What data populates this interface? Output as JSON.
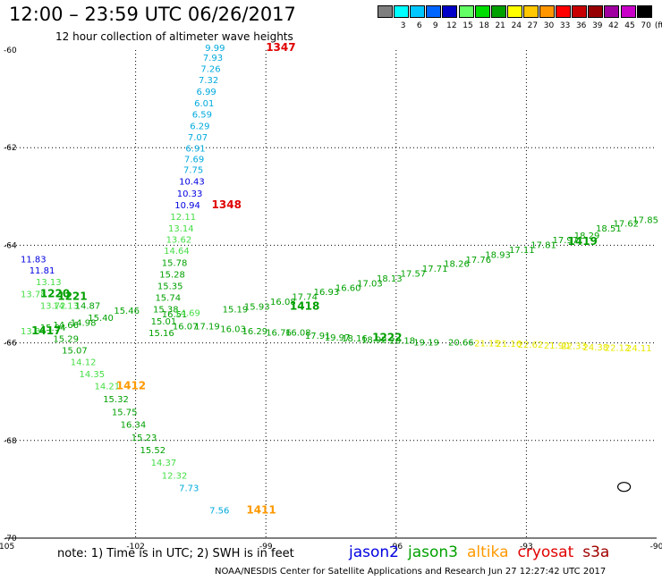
{
  "colors": {
    "jason2": "#0000e0",
    "jason3": "#00a000",
    "altika": "#ff9900",
    "cryosat": "#e00000",
    "s3a": "#a00000",
    "light_green": "#44dd44",
    "cyan": "#00aadd",
    "yellow": "#e8e800"
  },
  "header": {
    "title": "12:00 – 23:59 UTC 06/26/2017",
    "subtitle": "12 hour collection of altimeter wave heights"
  },
  "colorbar": {
    "unit": "(ft)",
    "bins": [
      {
        "label": "",
        "color": "#7f7f7f"
      },
      {
        "label": "3",
        "color": "#00ffff"
      },
      {
        "label": "6",
        "color": "#00c8ff"
      },
      {
        "label": "9",
        "color": "#0064ff"
      },
      {
        "label": "12",
        "color": "#0000c8"
      },
      {
        "label": "15",
        "color": "#64ff64"
      },
      {
        "label": "18",
        "color": "#00dd00"
      },
      {
        "label": "21",
        "color": "#00a000"
      },
      {
        "label": "24",
        "color": "#ffff00"
      },
      {
        "label": "27",
        "color": "#ffc800"
      },
      {
        "label": "30",
        "color": "#ff9600"
      },
      {
        "label": "33",
        "color": "#ff0000"
      },
      {
        "label": "36",
        "color": "#c80000"
      },
      {
        "label": "39",
        "color": "#960000"
      },
      {
        "label": "42",
        "color": "#a000a0"
      },
      {
        "label": "45",
        "color": "#c800c8"
      },
      {
        "label": "70",
        "color": "#000000"
      }
    ]
  },
  "chart_data": {
    "type": "scatter",
    "title": "12:00 – 23:59 UTC 06/26/2017",
    "xlim": [
      -105,
      -90
    ],
    "ylim": [
      -70,
      -60
    ],
    "x_ticks": [
      -105,
      -102,
      -99,
      -96,
      -93,
      -90
    ],
    "y_ticks": [
      -60,
      -62,
      -64,
      -66,
      -68,
      -70
    ],
    "grid": true,
    "points": [
      {
        "lon": -100.4,
        "lat": -60.02,
        "text": "9.99",
        "c": "cyan"
      },
      {
        "lon": -100.45,
        "lat": -60.22,
        "text": "7.93",
        "c": "cyan"
      },
      {
        "lon": -100.5,
        "lat": -60.45,
        "text": "7.26",
        "c": "cyan"
      },
      {
        "lon": -100.55,
        "lat": -60.68,
        "text": "7.32",
        "c": "cyan"
      },
      {
        "lon": -100.6,
        "lat": -60.92,
        "text": "6.99",
        "c": "cyan"
      },
      {
        "lon": -100.65,
        "lat": -61.15,
        "text": "6.01",
        "c": "cyan"
      },
      {
        "lon": -100.7,
        "lat": -61.38,
        "text": "6.59",
        "c": "cyan"
      },
      {
        "lon": -100.75,
        "lat": -61.62,
        "text": "6.29",
        "c": "cyan"
      },
      {
        "lon": -100.8,
        "lat": -61.85,
        "text": "7.07",
        "c": "cyan"
      },
      {
        "lon": -100.85,
        "lat": -62.08,
        "text": "6.91",
        "c": "cyan"
      },
      {
        "lon": -100.88,
        "lat": -62.3,
        "text": "7.69",
        "c": "cyan"
      },
      {
        "lon": -100.9,
        "lat": -62.52,
        "text": "7.75",
        "c": "cyan"
      },
      {
        "lon": -101.0,
        "lat": -62.76,
        "text": "10.43",
        "c": "jason2"
      },
      {
        "lon": -101.05,
        "lat": -63.0,
        "text": "10.33",
        "c": "jason2"
      },
      {
        "lon": -101.1,
        "lat": -63.24,
        "text": "10.94",
        "c": "jason2"
      },
      {
        "lon": -101.2,
        "lat": -63.48,
        "text": "12.11",
        "c": "light_green"
      },
      {
        "lon": -101.25,
        "lat": -63.72,
        "text": "13.14",
        "c": "light_green"
      },
      {
        "lon": -101.3,
        "lat": -63.95,
        "text": "13.62",
        "c": "light_green"
      },
      {
        "lon": -101.35,
        "lat": -64.18,
        "text": "14.64",
        "c": "light_green"
      },
      {
        "lon": -101.4,
        "lat": -64.42,
        "text": "15.78",
        "c": "jason3"
      },
      {
        "lon": -101.45,
        "lat": -64.66,
        "text": "15.28",
        "c": "jason3"
      },
      {
        "lon": -101.5,
        "lat": -64.9,
        "text": "15.35",
        "c": "jason3"
      },
      {
        "lon": -101.55,
        "lat": -65.14,
        "text": "15.74",
        "c": "jason3"
      },
      {
        "lon": -101.6,
        "lat": -65.38,
        "text": "15.38",
        "c": "jason3"
      },
      {
        "lon": -101.65,
        "lat": -65.62,
        "text": "15.01",
        "c": "jason3"
      },
      {
        "lon": -101.7,
        "lat": -65.86,
        "text": "15.16",
        "c": "jason3"
      },
      {
        "lon": -104.65,
        "lat": -64.35,
        "text": "11.83",
        "c": "jason2"
      },
      {
        "lon": -104.45,
        "lat": -64.58,
        "text": "11.81",
        "c": "jason2"
      },
      {
        "lon": -104.3,
        "lat": -64.82,
        "text": "13.13",
        "c": "light_green"
      },
      {
        "lon": -104.65,
        "lat": -65.06,
        "text": "13.78",
        "c": "light_green"
      },
      {
        "lon": -104.2,
        "lat": -65.3,
        "text": "13.72",
        "c": "light_green"
      },
      {
        "lon": -103.9,
        "lat": -65.3,
        "text": "14.13",
        "c": "light_green"
      },
      {
        "lon": -103.4,
        "lat": -65.3,
        "text": "14.87",
        "c": "jason3"
      },
      {
        "lon": -103.1,
        "lat": -65.55,
        "text": "15.40",
        "c": "jason3"
      },
      {
        "lon": -102.5,
        "lat": -65.4,
        "text": "15.46",
        "c": "jason3"
      },
      {
        "lon": -104.65,
        "lat": -65.82,
        "text": "13.34",
        "c": "light_green"
      },
      {
        "lon": -104.2,
        "lat": -65.75,
        "text": "15.94",
        "c": "jason3"
      },
      {
        "lon": -103.9,
        "lat": -65.7,
        "text": "14.66",
        "c": "jason3"
      },
      {
        "lon": -103.5,
        "lat": -65.65,
        "text": "14.98",
        "c": "jason3"
      },
      {
        "lon": -103.9,
        "lat": -65.98,
        "text": "15.29",
        "c": "jason3"
      },
      {
        "lon": -103.7,
        "lat": -66.22,
        "text": "15.07",
        "c": "jason3"
      },
      {
        "lon": -103.5,
        "lat": -66.46,
        "text": "14.12",
        "c": "light_green"
      },
      {
        "lon": -103.3,
        "lat": -66.7,
        "text": "14.35",
        "c": "light_green"
      },
      {
        "lon": -102.95,
        "lat": -66.95,
        "text": "14.21",
        "c": "light_green"
      },
      {
        "lon": -102.75,
        "lat": -67.22,
        "text": "15.32",
        "c": "jason3"
      },
      {
        "lon": -102.55,
        "lat": -67.48,
        "text": "15.75",
        "c": "jason3"
      },
      {
        "lon": -102.35,
        "lat": -67.74,
        "text": "16.34",
        "c": "jason3"
      },
      {
        "lon": -102.1,
        "lat": -68.0,
        "text": "15.23",
        "c": "jason3"
      },
      {
        "lon": -101.9,
        "lat": -68.26,
        "text": "15.52",
        "c": "jason3"
      },
      {
        "lon": -101.65,
        "lat": -68.52,
        "text": "14.37",
        "c": "light_green"
      },
      {
        "lon": -101.4,
        "lat": -68.78,
        "text": "12.32",
        "c": "light_green"
      },
      {
        "lon": -101.0,
        "lat": -69.04,
        "text": "7.73",
        "c": "cyan"
      },
      {
        "lon": -100.3,
        "lat": -69.5,
        "text": "7.56",
        "c": "cyan"
      },
      {
        "lon": -101.4,
        "lat": -65.48,
        "text": "16.51",
        "c": "jason3"
      },
      {
        "lon": -101.15,
        "lat": -65.72,
        "text": "16.07",
        "c": "jason3"
      },
      {
        "lon": -101.1,
        "lat": -65.45,
        "text": "14.69",
        "c": "light_green"
      },
      {
        "lon": -100.65,
        "lat": -65.72,
        "text": "17.19",
        "c": "jason3"
      },
      {
        "lon": -100.05,
        "lat": -65.78,
        "text": "16.03",
        "c": "jason3"
      },
      {
        "lon": -99.55,
        "lat": -65.82,
        "text": "16.29",
        "c": "jason3"
      },
      {
        "lon": -99.0,
        "lat": -65.85,
        "text": "16.76",
        "c": "jason3"
      },
      {
        "lon": -98.55,
        "lat": -65.85,
        "text": "16.08",
        "c": "jason3"
      },
      {
        "lon": -98.1,
        "lat": -65.92,
        "text": "17.91",
        "c": "jason3"
      },
      {
        "lon": -97.65,
        "lat": -65.95,
        "text": "19.97",
        "c": "jason3"
      },
      {
        "lon": -97.25,
        "lat": -65.97,
        "text": "18.16",
        "c": "jason3"
      },
      {
        "lon": -96.8,
        "lat": -66.0,
        "text": "18.92",
        "c": "jason3"
      },
      {
        "lon": -96.15,
        "lat": -66.02,
        "text": "20.18",
        "c": "jason3"
      },
      {
        "lon": -95.6,
        "lat": -66.05,
        "text": "19.19",
        "c": "jason3"
      },
      {
        "lon": -94.8,
        "lat": -66.05,
        "text": "20.66",
        "c": "jason3"
      },
      {
        "lon": -94.2,
        "lat": -66.07,
        "text": "21.15",
        "c": "yellow"
      },
      {
        "lon": -93.7,
        "lat": -66.08,
        "text": "21.16",
        "c": "yellow"
      },
      {
        "lon": -93.2,
        "lat": -66.1,
        "text": "22.62",
        "c": "yellow"
      },
      {
        "lon": -92.6,
        "lat": -66.12,
        "text": "21.90",
        "c": "yellow"
      },
      {
        "lon": -92.2,
        "lat": -66.13,
        "text": "22.33",
        "c": "yellow"
      },
      {
        "lon": -91.7,
        "lat": -66.15,
        "text": "24.38",
        "c": "yellow"
      },
      {
        "lon": -91.2,
        "lat": -66.16,
        "text": "22.12",
        "c": "yellow"
      },
      {
        "lon": -90.7,
        "lat": -66.17,
        "text": "24.11",
        "c": "yellow"
      },
      {
        "lon": -100.0,
        "lat": -65.38,
        "text": "15.19",
        "c": "jason3"
      },
      {
        "lon": -99.5,
        "lat": -65.32,
        "text": "15.93",
        "c": "jason3"
      },
      {
        "lon": -98.9,
        "lat": -65.22,
        "text": "16.08",
        "c": "jason3"
      },
      {
        "lon": -98.4,
        "lat": -65.12,
        "text": "17.74",
        "c": "jason3"
      },
      {
        "lon": -97.9,
        "lat": -65.02,
        "text": "16.93",
        "c": "jason3"
      },
      {
        "lon": -97.4,
        "lat": -64.94,
        "text": "16.60",
        "c": "jason3"
      },
      {
        "lon": -96.9,
        "lat": -64.84,
        "text": "17.03",
        "c": "jason3"
      },
      {
        "lon": -96.45,
        "lat": -64.74,
        "text": "18.13",
        "c": "jason3"
      },
      {
        "lon": -95.9,
        "lat": -64.64,
        "text": "17.57",
        "c": "jason3"
      },
      {
        "lon": -95.4,
        "lat": -64.54,
        "text": "17.71",
        "c": "jason3"
      },
      {
        "lon": -94.9,
        "lat": -64.44,
        "text": "18.26",
        "c": "jason3"
      },
      {
        "lon": -94.4,
        "lat": -64.36,
        "text": "17.76",
        "c": "jason3"
      },
      {
        "lon": -93.95,
        "lat": -64.26,
        "text": "18.93",
        "c": "jason3"
      },
      {
        "lon": -93.4,
        "lat": -64.16,
        "text": "17.11",
        "c": "jason3"
      },
      {
        "lon": -92.9,
        "lat": -64.06,
        "text": "17.81",
        "c": "jason3"
      },
      {
        "lon": -92.4,
        "lat": -63.96,
        "text": "17.97",
        "c": "jason3"
      },
      {
        "lon": -91.9,
        "lat": -63.86,
        "text": "18.29",
        "c": "jason3"
      },
      {
        "lon": -91.4,
        "lat": -63.72,
        "text": "18.51",
        "c": "jason3"
      },
      {
        "lon": -91.0,
        "lat": -63.62,
        "text": "17.62",
        "c": "jason3"
      },
      {
        "lon": -90.55,
        "lat": -63.54,
        "text": "17.85",
        "c": "jason3"
      }
    ],
    "time_labels": [
      {
        "lon": -99.0,
        "lat": -60.02,
        "text": "1347",
        "c": "cryosat"
      },
      {
        "lon": -100.25,
        "lat": -63.24,
        "text": "1348",
        "c": "cryosat"
      },
      {
        "lon": -104.2,
        "lat": -65.06,
        "text": "1220",
        "c": "jason3"
      },
      {
        "lon": -103.8,
        "lat": -65.12,
        "text": "1221",
        "c": "jason3"
      },
      {
        "lon": -104.4,
        "lat": -65.82,
        "text": "1417",
        "c": "jason3"
      },
      {
        "lon": -102.45,
        "lat": -66.95,
        "text": "1412",
        "c": "altika"
      },
      {
        "lon": -98.45,
        "lat": -65.32,
        "text": "1418",
        "c": "jason3"
      },
      {
        "lon": -96.55,
        "lat": -65.96,
        "text": "1222",
        "c": "jason3"
      },
      {
        "lon": -92.05,
        "lat": -63.99,
        "text": "1419",
        "c": "jason3"
      },
      {
        "lon": -99.45,
        "lat": -69.5,
        "text": "1411",
        "c": "altika"
      }
    ],
    "contour": {
      "lon": -90.75,
      "lat": -68.95
    }
  },
  "footer": {
    "note": "note:  1) Time is in UTC;  2) SWH is in feet",
    "satellites": [
      {
        "name": "jason2",
        "color": "#0000e0"
      },
      {
        "name": "jason3",
        "color": "#00a000"
      },
      {
        "name": "altika",
        "color": "#ff9900"
      },
      {
        "name": "cryosat",
        "color": "#e00000"
      },
      {
        "name": "s3a",
        "color": "#a00000"
      }
    ],
    "credit": "NOAA/NESDIS Center for Satellite Applications and Research    Jun 27 12:27:42 UTC 2017"
  }
}
